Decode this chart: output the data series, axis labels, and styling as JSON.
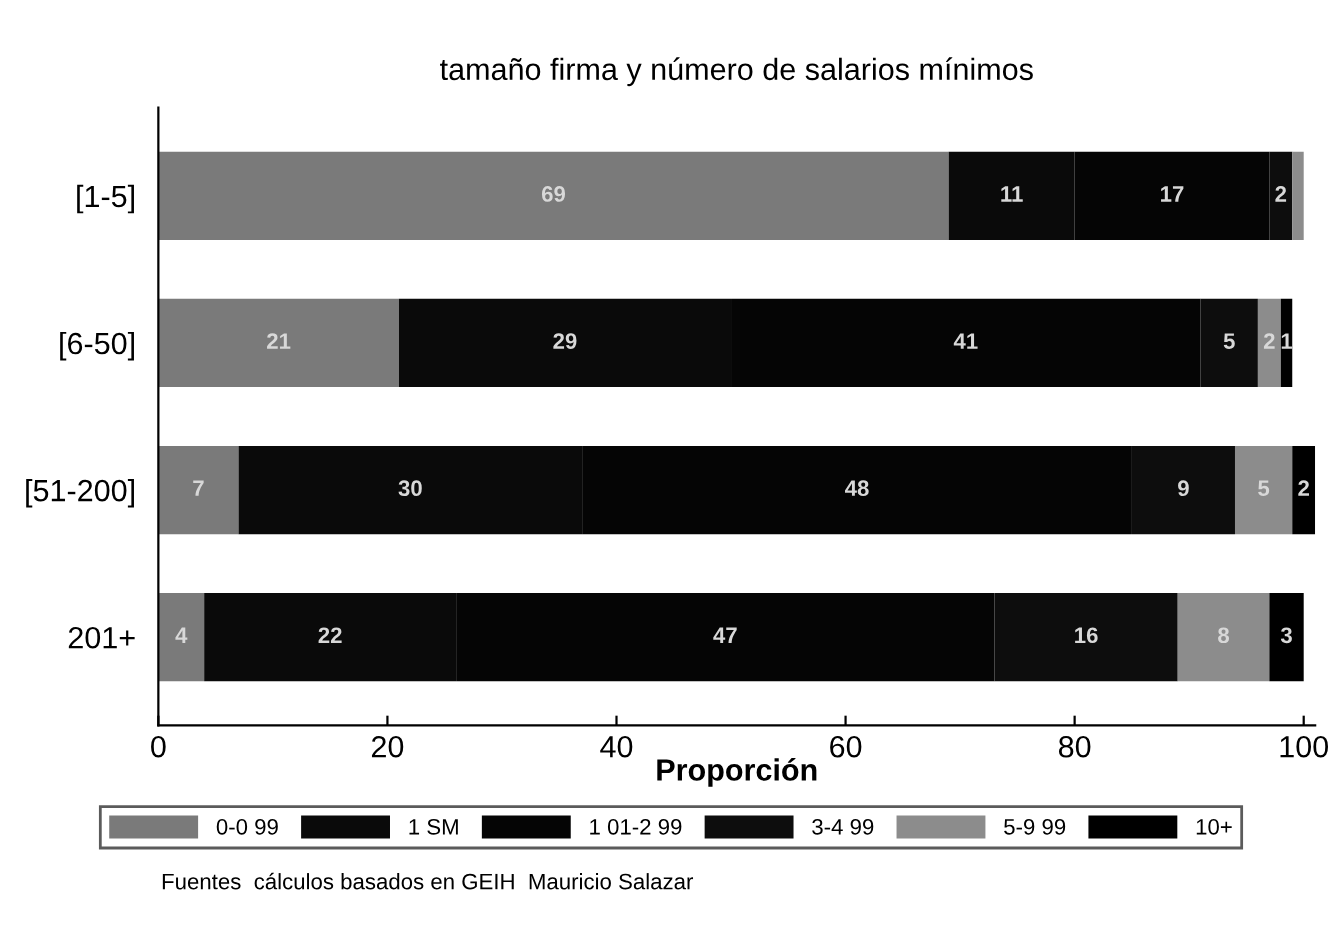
{
  "chart_data": {
    "type": "bar",
    "orientation": "horizontal",
    "stacked": true,
    "title": "tamaño firma y número de salarios mínimos",
    "xlabel": "Proporción",
    "categories": [
      "[1-5]",
      "[6-50]",
      "[51-200]",
      "201+"
    ],
    "xlim": [
      0,
      101
    ],
    "xticks": [
      0,
      20,
      40,
      60,
      80,
      100
    ],
    "grid": false,
    "legend": "bottom",
    "series": [
      {
        "name": "0-0 99",
        "color": "#7a7a7a",
        "values": [
          69,
          21,
          7,
          4
        ],
        "value_labels": [
          "69",
          "21",
          "7",
          "4"
        ]
      },
      {
        "name": "1 SM",
        "color": "#0a0a0a",
        "values": [
          11,
          29,
          30,
          22
        ],
        "value_labels": [
          "11",
          "29",
          "30",
          "22"
        ]
      },
      {
        "name": "1 01-2 99",
        "color": "#050505",
        "values": [
          17,
          41,
          48,
          47
        ],
        "value_labels": [
          "17",
          "41",
          "48",
          "47"
        ]
      },
      {
        "name": "3-4 99",
        "color": "#0d0d0d",
        "values": [
          2,
          5,
          9,
          16
        ],
        "value_labels": [
          "2",
          "5",
          "9",
          "16"
        ]
      },
      {
        "name": "5-9 99",
        "color": "#8c8c8c",
        "values": [
          1,
          2,
          5,
          8
        ],
        "value_labels": [
          null,
          "2",
          "5",
          "8"
        ]
      },
      {
        "name": "10+",
        "color": "#000000",
        "values": [
          0,
          1,
          2,
          3
        ],
        "value_labels": [
          null,
          "1",
          "2",
          "3"
        ]
      }
    ],
    "annotations": [
      "Fuentes  cálculos basados en GEIH  Mauricio Salazar"
    ]
  }
}
